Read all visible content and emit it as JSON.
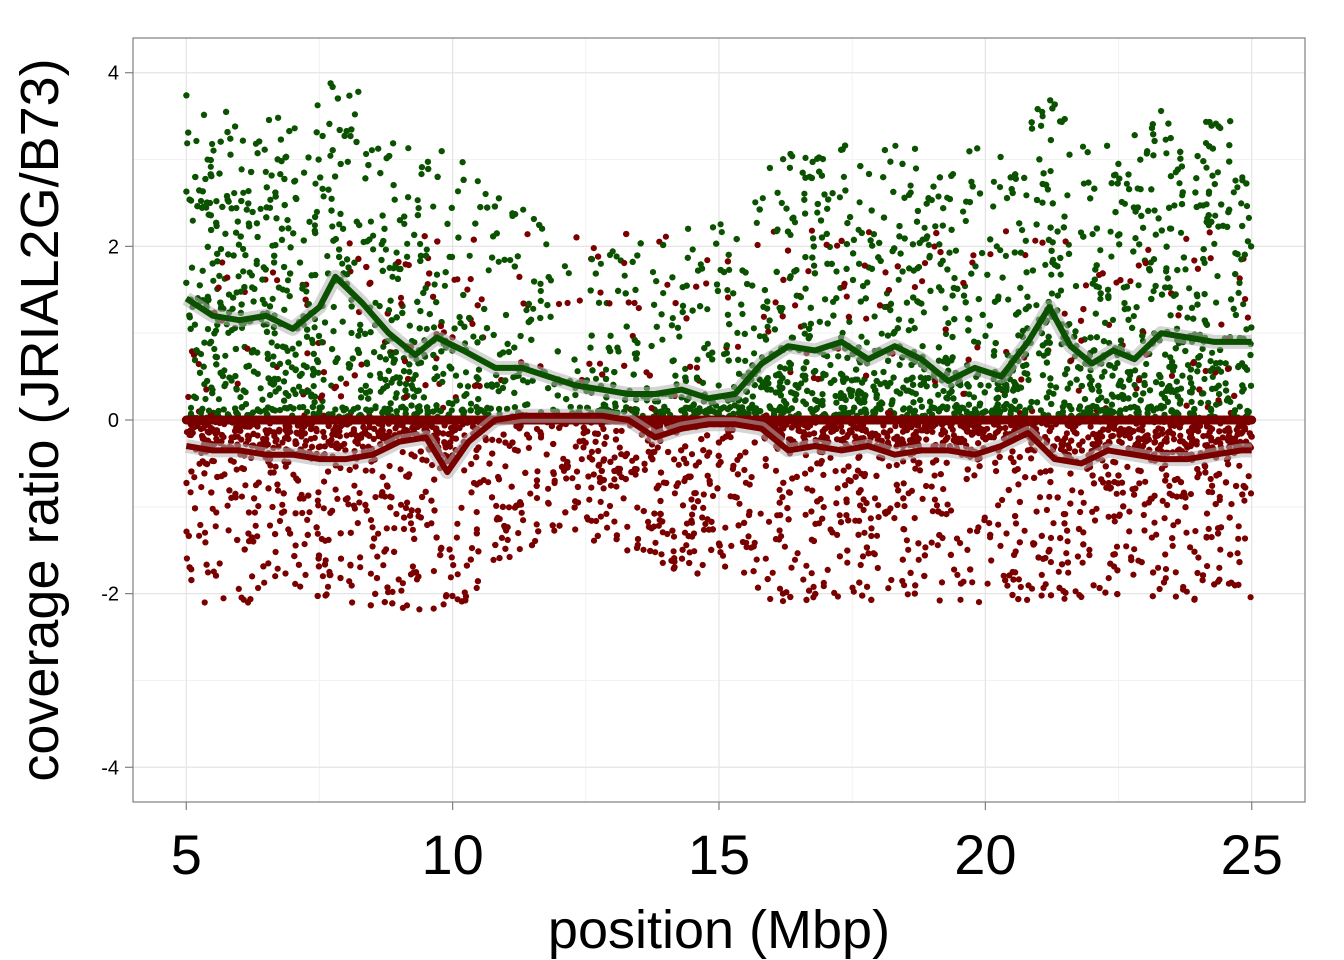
{
  "chart_data": {
    "type": "scatter",
    "title": "",
    "xlabel": "position (Mbp)",
    "ylabel": "coverage ratio (JRIAL2G/B73)",
    "xlim": [
      4.0,
      26.0
    ],
    "ylim": [
      -4.4,
      4.4
    ],
    "x_ticks": [
      5,
      10,
      15,
      20,
      25
    ],
    "y_ticks": [
      -4,
      -2,
      0,
      2,
      4
    ],
    "x_tick_labels": [
      "5",
      "10",
      "15",
      "20",
      "25"
    ],
    "y_tick_labels": [
      "-4",
      "-2",
      "0",
      "2",
      "4"
    ],
    "grid": true,
    "legend": "none",
    "series": [
      {
        "color": "#0b5200",
        "kind": "points",
        "density_by_position": [
          [
            5,
            1.0
          ],
          [
            8,
            1.0
          ],
          [
            10,
            0.7
          ],
          [
            12,
            0.35
          ],
          [
            14,
            0.4
          ],
          [
            16,
            1.0
          ],
          [
            20,
            1.0
          ],
          [
            25,
            1.0
          ]
        ],
        "spread_above_trend": [
          [
            5,
            2.4
          ],
          [
            8,
            2.4
          ],
          [
            10,
            2.3
          ],
          [
            12,
            1.6
          ],
          [
            14,
            1.8
          ],
          [
            16,
            2.2
          ],
          [
            20,
            2.6
          ],
          [
            25,
            2.6
          ]
        ]
      },
      {
        "color": "#7a0000",
        "kind": "points",
        "density_by_position": [
          [
            5,
            1.0
          ],
          [
            10,
            1.0
          ],
          [
            12,
            0.5
          ],
          [
            13,
            1.0
          ],
          [
            16,
            1.0
          ],
          [
            25,
            1.0
          ]
        ],
        "spread_below_trend": [
          [
            5,
            2.0
          ],
          [
            10,
            2.1
          ],
          [
            11,
            1.6
          ],
          [
            12,
            1.2
          ],
          [
            13,
            1.4
          ],
          [
            16,
            2.0
          ],
          [
            25,
            2.0
          ]
        ]
      },
      {
        "color": "#0b5200",
        "kind": "trend",
        "x": [
          5.0,
          5.5,
          6.0,
          6.5,
          7.0,
          7.5,
          7.8,
          8.3,
          8.8,
          9.3,
          9.7,
          10.2,
          10.8,
          11.3,
          11.8,
          12.3,
          12.8,
          13.3,
          13.8,
          14.3,
          14.8,
          15.3,
          15.8,
          16.3,
          16.8,
          17.3,
          17.8,
          18.3,
          18.8,
          19.3,
          19.8,
          20.3,
          20.8,
          21.2,
          21.6,
          22.0,
          22.4,
          22.8,
          23.3,
          23.8,
          24.3,
          24.8,
          25.0
        ],
        "y": [
          1.4,
          1.2,
          1.15,
          1.2,
          1.05,
          1.3,
          1.65,
          1.35,
          1.0,
          0.75,
          0.95,
          0.8,
          0.6,
          0.6,
          0.5,
          0.4,
          0.35,
          0.3,
          0.3,
          0.35,
          0.25,
          0.3,
          0.65,
          0.85,
          0.8,
          0.9,
          0.7,
          0.85,
          0.7,
          0.45,
          0.6,
          0.5,
          0.9,
          1.3,
          0.85,
          0.65,
          0.8,
          0.7,
          1.0,
          0.95,
          0.9,
          0.9,
          0.9
        ]
      },
      {
        "color": "#7a0000",
        "kind": "trend",
        "x": [
          5.0,
          5.5,
          6.0,
          6.5,
          7.0,
          7.5,
          8.0,
          8.5,
          9.0,
          9.5,
          9.9,
          10.3,
          10.8,
          11.3,
          11.8,
          12.3,
          12.8,
          13.3,
          13.8,
          14.3,
          14.8,
          15.3,
          15.8,
          16.3,
          16.8,
          17.3,
          17.8,
          18.3,
          18.8,
          19.3,
          19.8,
          20.3,
          20.8,
          21.3,
          21.8,
          22.3,
          22.8,
          23.3,
          23.8,
          24.3,
          24.8,
          25.0
        ],
        "y": [
          -0.3,
          -0.35,
          -0.35,
          -0.4,
          -0.4,
          -0.45,
          -0.45,
          -0.4,
          -0.25,
          -0.2,
          -0.6,
          -0.25,
          0.0,
          0.05,
          0.05,
          0.05,
          0.05,
          0.0,
          -0.2,
          -0.1,
          -0.05,
          -0.05,
          -0.1,
          -0.35,
          -0.3,
          -0.35,
          -0.3,
          -0.4,
          -0.35,
          -0.35,
          -0.4,
          -0.3,
          -0.15,
          -0.45,
          -0.5,
          -0.35,
          -0.4,
          -0.45,
          -0.45,
          -0.4,
          -0.35,
          -0.35
        ]
      },
      {
        "color": "#7a0000",
        "kind": "baseline",
        "x": [
          5.0,
          25.0
        ],
        "y": [
          0.0,
          0.0
        ]
      }
    ]
  }
}
